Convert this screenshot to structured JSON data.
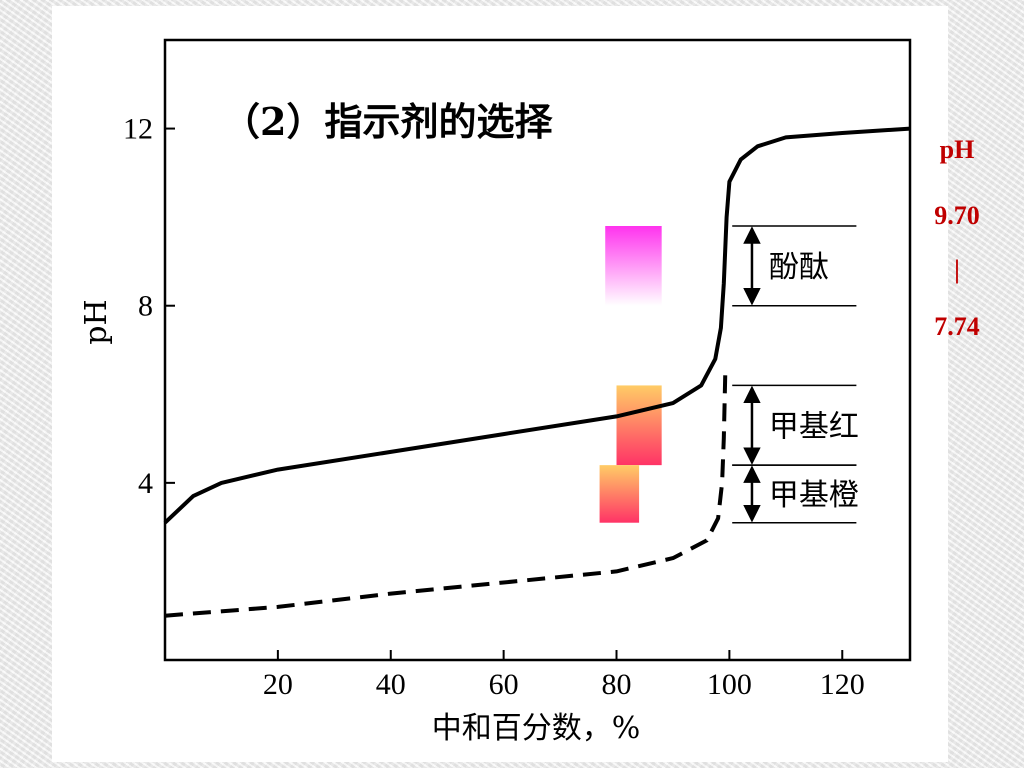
{
  "chart_data": {
    "type": "line",
    "title": "（2）指示剂的选择",
    "xlabel": "中和百分数，%",
    "ylabel": "pH",
    "xlim": [
      0,
      132
    ],
    "ylim": [
      0,
      14
    ],
    "x_ticks": [
      "20",
      "40",
      "60",
      "80",
      "100",
      "120"
    ],
    "y_ticks": [
      "4",
      "8",
      "12"
    ],
    "grid": false,
    "series": [
      {
        "style": "solid",
        "points": [
          [
            0,
            3.1
          ],
          [
            5,
            3.7
          ],
          [
            10,
            4.0
          ],
          [
            20,
            4.3
          ],
          [
            40,
            4.7
          ],
          [
            60,
            5.1
          ],
          [
            80,
            5.5
          ],
          [
            90,
            5.8
          ],
          [
            95,
            6.2
          ],
          [
            97.5,
            6.8
          ],
          [
            98.5,
            7.5
          ],
          [
            99,
            8.5
          ],
          [
            99.5,
            10.0
          ],
          [
            100,
            10.8
          ],
          [
            102,
            11.3
          ],
          [
            105,
            11.6
          ],
          [
            110,
            11.8
          ],
          [
            120,
            11.9
          ],
          [
            132,
            12.0
          ]
        ]
      },
      {
        "style": "dashed",
        "points": [
          [
            0,
            1.0
          ],
          [
            20,
            1.2
          ],
          [
            40,
            1.5
          ],
          [
            60,
            1.75
          ],
          [
            80,
            2.0
          ],
          [
            90,
            2.3
          ],
          [
            96,
            2.7
          ],
          [
            98,
            3.2
          ],
          [
            98.7,
            4.0
          ],
          [
            99,
            5.0
          ],
          [
            99.3,
            6.6
          ]
        ]
      }
    ],
    "indicators": [
      {
        "name": "酚酞",
        "low": 8.0,
        "high": 9.8,
        "color_top": "#ff33ee",
        "color_bottom": "#ffffff",
        "swatch_x": [
          78,
          88
        ]
      },
      {
        "name": "甲基红",
        "low": 4.4,
        "high": 6.2,
        "color_top": "#ffcc66",
        "color_bottom": "#ff3366",
        "swatch_x": [
          80,
          88
        ]
      },
      {
        "name": "甲基橙",
        "low": 3.1,
        "high": 4.4,
        "color_top": "#ffcc66",
        "color_bottom": "#ff3366",
        "swatch_x": [
          77,
          84
        ]
      }
    ]
  },
  "side_note": {
    "label": "pH",
    "high": "9.70",
    "separator": "|",
    "low": "7.74"
  },
  "colors": {
    "accent": "#c00000",
    "curve": "#000000"
  }
}
